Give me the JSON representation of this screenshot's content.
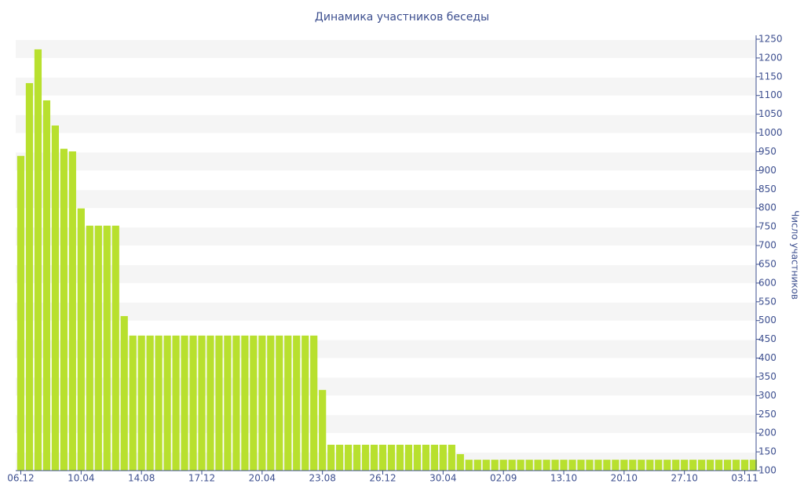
{
  "chart_data": {
    "type": "bar",
    "title": "Динамика участников беседы",
    "y_axis_label": "Число участников",
    "categories": [
      "06.12",
      null,
      null,
      null,
      null,
      null,
      null,
      "10.04",
      null,
      null,
      null,
      null,
      null,
      null,
      "14.08",
      null,
      null,
      null,
      null,
      null,
      null,
      "17.12",
      null,
      null,
      null,
      null,
      null,
      null,
      "20.04",
      null,
      null,
      null,
      null,
      null,
      null,
      "23.08",
      null,
      null,
      null,
      null,
      null,
      null,
      "26.12",
      null,
      null,
      null,
      null,
      null,
      null,
      "30.04",
      null,
      null,
      null,
      null,
      null,
      null,
      "02.09",
      null,
      null,
      null,
      null,
      null,
      null,
      "13.10",
      null,
      null,
      null,
      null,
      null,
      null,
      "20.10",
      null,
      null,
      null,
      null,
      null,
      null,
      "27.10",
      null,
      null,
      null,
      null,
      null,
      null,
      "03.11",
      null
    ],
    "values": [
      939,
      1133,
      1223,
      1087,
      1020,
      958,
      951,
      799,
      753,
      753,
      753,
      753,
      512,
      460,
      460,
      460,
      460,
      460,
      460,
      460,
      460,
      460,
      460,
      460,
      460,
      460,
      460,
      460,
      460,
      460,
      460,
      460,
      460,
      460,
      460,
      315,
      169,
      169,
      169,
      169,
      169,
      169,
      169,
      169,
      169,
      169,
      169,
      169,
      169,
      169,
      169,
      144,
      129,
      129,
      129,
      129,
      129,
      129,
      129,
      129,
      129,
      129,
      129,
      129,
      129,
      129,
      129,
      129,
      129,
      129,
      129,
      129,
      129,
      129,
      129,
      129,
      129,
      129,
      129,
      129,
      129,
      129,
      129,
      129,
      129,
      129
    ],
    "color": "#b8e02e",
    "ylim": [
      100,
      1250
    ],
    "yticks": [
      100,
      150,
      200,
      250,
      300,
      350,
      400,
      450,
      500,
      550,
      600,
      650,
      700,
      750,
      800,
      850,
      900,
      950,
      1000,
      1050,
      1100,
      1150,
      1200,
      1250
    ],
    "y_axis_side": "right",
    "grid": "bands"
  }
}
